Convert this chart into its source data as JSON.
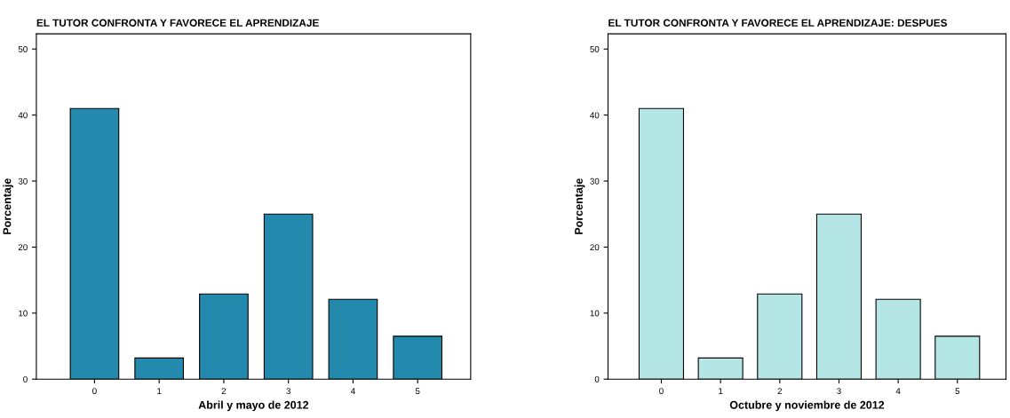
{
  "chart_data": [
    {
      "type": "bar",
      "title": "EL TUTOR CONFRONTA Y FAVORECE EL APRENDIZAJE",
      "xlabel": "Abril y mayo de 2012",
      "ylabel": "Porcentaje",
      "categories": [
        "0",
        "1",
        "2",
        "3",
        "4",
        "5"
      ],
      "values": [
        41.0,
        3.2,
        12.9,
        25.0,
        12.1,
        6.5
      ],
      "color": "#238aad",
      "ylim": [
        0,
        52.3
      ],
      "yticks": [
        0,
        10,
        20,
        30,
        40,
        50
      ],
      "grid": false,
      "legend": false
    },
    {
      "type": "bar",
      "title": "EL TUTOR CONFRONTA Y FAVORECE EL APRENDIZAJE: DESPUES",
      "xlabel": "Octubre y noviembre de 2012",
      "ylabel": "Porcentaje",
      "categories": [
        "0",
        "1",
        "2",
        "3",
        "4",
        "5"
      ],
      "values": [
        41.0,
        3.2,
        12.9,
        25.0,
        12.1,
        6.5
      ],
      "color": "#b4e6e6",
      "ylim": [
        0,
        52.3
      ],
      "yticks": [
        0,
        10,
        20,
        30,
        40,
        50
      ],
      "grid": false,
      "legend": false
    }
  ]
}
